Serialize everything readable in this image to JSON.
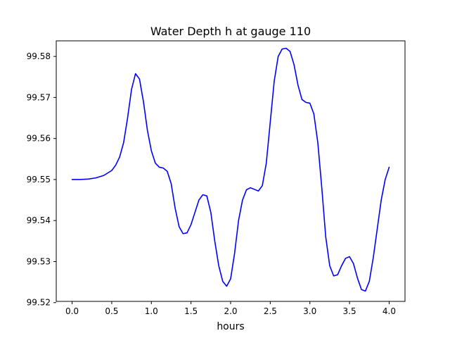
{
  "chart_data": {
    "type": "line",
    "title": "Water Depth h at gauge 110",
    "xlabel": "hours",
    "ylabel": "",
    "xlim": [
      -0.2,
      4.2
    ],
    "ylim": [
      99.5203,
      99.5838
    ],
    "grid": false,
    "x_ticks": [
      {
        "value": 0.0,
        "label": "0.0"
      },
      {
        "value": 0.5,
        "label": "0.5"
      },
      {
        "value": 1.0,
        "label": "1.0"
      },
      {
        "value": 1.5,
        "label": "1.5"
      },
      {
        "value": 2.0,
        "label": "2.0"
      },
      {
        "value": 2.5,
        "label": "2.5"
      },
      {
        "value": 3.0,
        "label": "3.0"
      },
      {
        "value": 3.5,
        "label": "3.5"
      },
      {
        "value": 4.0,
        "label": "4.0"
      }
    ],
    "y_ticks": [
      {
        "value": 99.52,
        "label": "99.52"
      },
      {
        "value": 99.53,
        "label": "99.53"
      },
      {
        "value": 99.54,
        "label": "99.54"
      },
      {
        "value": 99.55,
        "label": "99.55"
      },
      {
        "value": 99.56,
        "label": "99.56"
      },
      {
        "value": 99.57,
        "label": "99.57"
      },
      {
        "value": 99.58,
        "label": "99.58"
      }
    ],
    "series": [
      {
        "color": "#0000ff",
        "points": [
          [
            0.0,
            99.55
          ],
          [
            0.1,
            99.55
          ],
          [
            0.2,
            99.5501
          ],
          [
            0.3,
            99.5504
          ],
          [
            0.4,
            99.551
          ],
          [
            0.5,
            99.5522
          ],
          [
            0.55,
            99.5535
          ],
          [
            0.6,
            99.5555
          ],
          [
            0.65,
            99.559
          ],
          [
            0.7,
            99.565
          ],
          [
            0.75,
            99.572
          ],
          [
            0.8,
            99.5758
          ],
          [
            0.85,
            99.5745
          ],
          [
            0.9,
            99.569
          ],
          [
            0.95,
            99.562
          ],
          [
            1.0,
            99.557
          ],
          [
            1.05,
            99.554
          ],
          [
            1.1,
            99.553
          ],
          [
            1.15,
            99.5528
          ],
          [
            1.2,
            99.552
          ],
          [
            1.25,
            99.549
          ],
          [
            1.3,
            99.543
          ],
          [
            1.35,
            99.5385
          ],
          [
            1.4,
            99.5368
          ],
          [
            1.45,
            99.537
          ],
          [
            1.5,
            99.539
          ],
          [
            1.55,
            99.542
          ],
          [
            1.6,
            99.545
          ],
          [
            1.65,
            99.5463
          ],
          [
            1.7,
            99.546
          ],
          [
            1.75,
            99.542
          ],
          [
            1.8,
            99.535
          ],
          [
            1.85,
            99.529
          ],
          [
            1.9,
            99.5252
          ],
          [
            1.95,
            99.524
          ],
          [
            2.0,
            99.5258
          ],
          [
            2.05,
            99.532
          ],
          [
            2.1,
            99.54
          ],
          [
            2.15,
            99.545
          ],
          [
            2.2,
            99.5475
          ],
          [
            2.25,
            99.548
          ],
          [
            2.3,
            99.5476
          ],
          [
            2.35,
            99.5472
          ],
          [
            2.4,
            99.5485
          ],
          [
            2.45,
            99.554
          ],
          [
            2.5,
            99.564
          ],
          [
            2.55,
            99.574
          ],
          [
            2.6,
            99.58
          ],
          [
            2.65,
            99.5818
          ],
          [
            2.7,
            99.582
          ],
          [
            2.75,
            99.5812
          ],
          [
            2.8,
            99.578
          ],
          [
            2.85,
            99.573
          ],
          [
            2.9,
            99.5695
          ],
          [
            2.95,
            99.5688
          ],
          [
            3.0,
            99.5686
          ],
          [
            3.05,
            99.566
          ],
          [
            3.1,
            99.559
          ],
          [
            3.15,
            99.548
          ],
          [
            3.2,
            99.536
          ],
          [
            3.25,
            99.529
          ],
          [
            3.3,
            99.5265
          ],
          [
            3.35,
            99.5268
          ],
          [
            3.4,
            99.529
          ],
          [
            3.45,
            99.5308
          ],
          [
            3.5,
            99.5312
          ],
          [
            3.55,
            99.5295
          ],
          [
            3.6,
            99.526
          ],
          [
            3.65,
            99.5232
          ],
          [
            3.7,
            99.5228
          ],
          [
            3.75,
            99.5252
          ],
          [
            3.8,
            99.531
          ],
          [
            3.85,
            99.538
          ],
          [
            3.9,
            99.545
          ],
          [
            3.95,
            99.55
          ],
          [
            4.0,
            99.553
          ]
        ]
      }
    ]
  }
}
